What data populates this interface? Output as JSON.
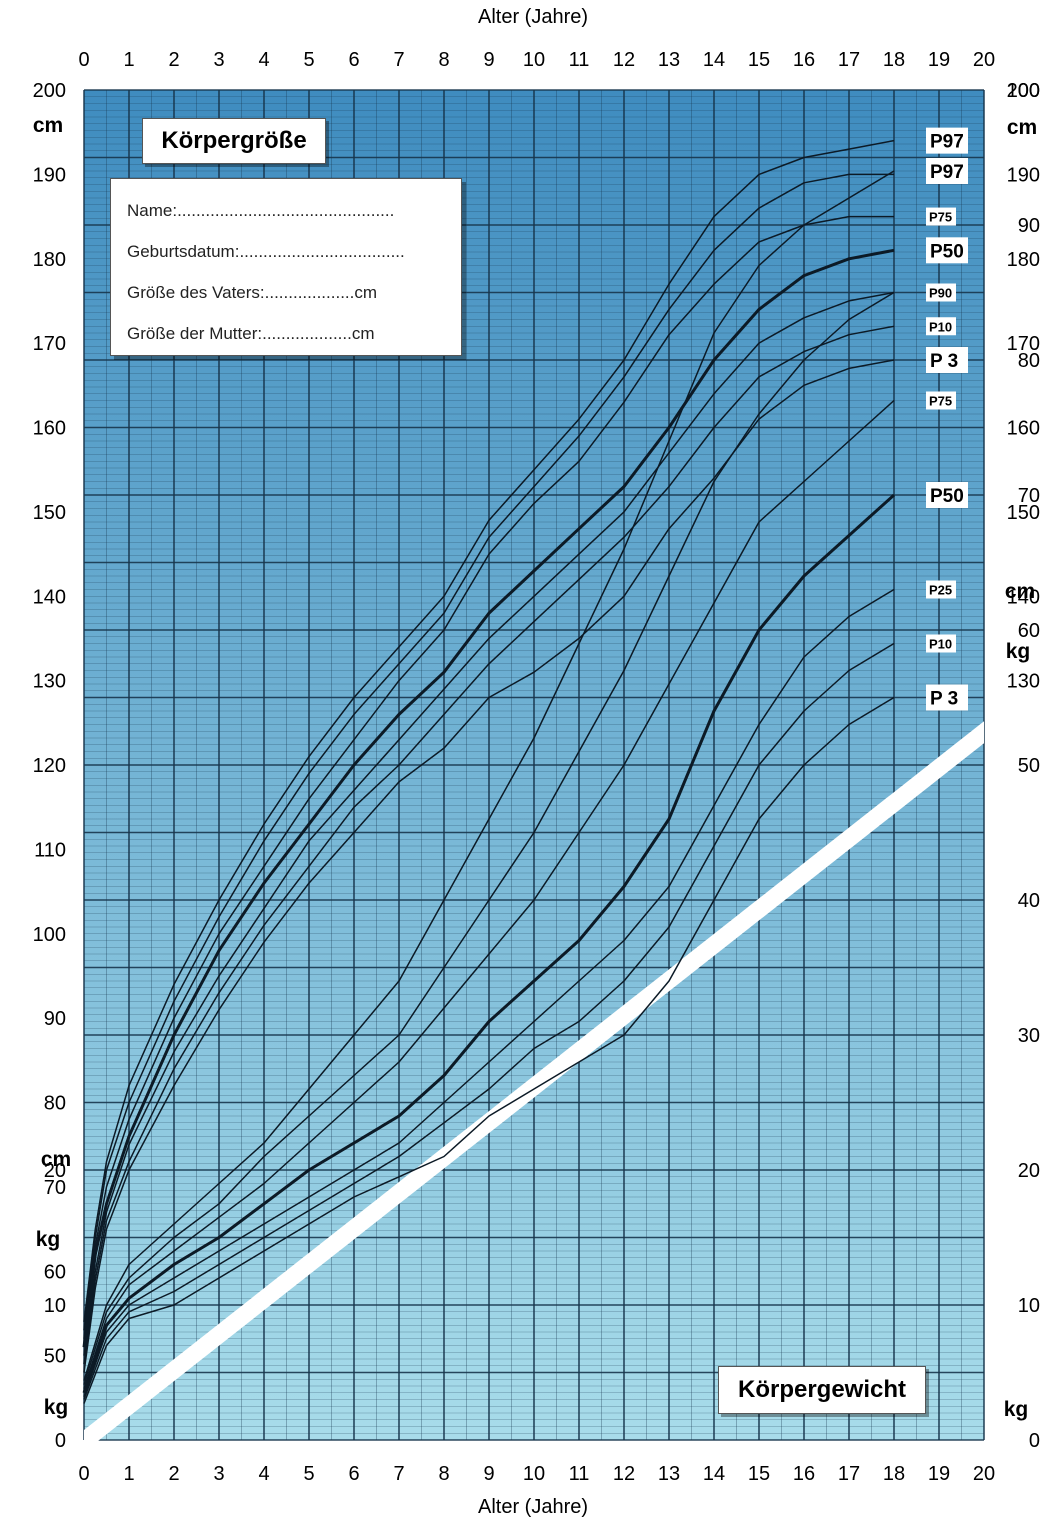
{
  "axis_title_top": "Alter (Jahre)",
  "axis_title_bottom": "Alter (Jahre)",
  "height_title": "Körpergröße",
  "weight_title": "Körpergewicht",
  "form": {
    "name": "Name:..............................................",
    "birth": "Geburtsdatum:...................................",
    "father": "Größe des Vaters:...................cm",
    "mother": "Größe der  Mutter:...................cm"
  },
  "units": {
    "cm": "cm",
    "kg": "kg"
  },
  "colors": {
    "background_top": "#3f8cbf",
    "background_bottom": "#a8dcea",
    "grid": "#17354d",
    "curve": "#0c1a26"
  },
  "chart_data": [
    {
      "type": "line",
      "title": "Körpergröße",
      "xlabel": "Alter (Jahre)",
      "ylabel": "cm",
      "xlim": [
        0,
        20
      ],
      "ylim": [
        40,
        200
      ],
      "x_ticks": [
        0,
        1,
        2,
        3,
        4,
        5,
        6,
        7,
        8,
        9,
        10,
        11,
        12,
        13,
        14,
        15,
        16,
        17,
        18,
        19,
        20
      ],
      "y_ticks": [
        50,
        60,
        70,
        80,
        90,
        100,
        110,
        120,
        130,
        140,
        150,
        160,
        170,
        180,
        190,
        200
      ],
      "grid": true,
      "legend_position": "right",
      "series": [
        {
          "name": "P97",
          "x": [
            0,
            0.25,
            0.5,
            1,
            2,
            3,
            4,
            5,
            6,
            7,
            8,
            9,
            10,
            11,
            12,
            13,
            14,
            15,
            16,
            17,
            18
          ],
          "y": [
            54,
            65,
            73,
            82,
            94,
            104,
            113,
            121,
            128,
            134,
            140,
            149,
            155,
            161,
            168,
            177,
            185,
            190,
            192,
            193,
            194
          ]
        },
        {
          "name": "P90",
          "x": [
            0,
            0.25,
            0.5,
            1,
            2,
            3,
            4,
            5,
            6,
            7,
            8,
            9,
            10,
            11,
            12,
            13,
            14,
            15,
            16,
            17,
            18
          ],
          "y": [
            53,
            64,
            72,
            80,
            92,
            102,
            111,
            119,
            126,
            132,
            138,
            147,
            153,
            159,
            166,
            174,
            181,
            186,
            189,
            190,
            190
          ]
        },
        {
          "name": "P75",
          "x": [
            0,
            0.25,
            0.5,
            1,
            2,
            3,
            4,
            5,
            6,
            7,
            8,
            9,
            10,
            11,
            12,
            13,
            14,
            15,
            16,
            17,
            18
          ],
          "y": [
            52,
            63,
            70,
            78,
            90,
            100,
            108,
            116,
            123,
            130,
            136,
            145,
            151,
            156,
            163,
            171,
            177,
            182,
            184,
            185,
            185
          ]
        },
        {
          "name": "P50",
          "x": [
            0,
            0.25,
            0.5,
            1,
            2,
            3,
            4,
            5,
            6,
            7,
            8,
            9,
            10,
            11,
            12,
            13,
            14,
            15,
            16,
            17,
            18
          ],
          "y": [
            51,
            62,
            68,
            76,
            88,
            98,
            106,
            113,
            120,
            126,
            131,
            138,
            143,
            148,
            153,
            160,
            168,
            174,
            178,
            180,
            181
          ]
        },
        {
          "name": "P25",
          "x": [
            0,
            0.25,
            0.5,
            1,
            2,
            3,
            4,
            5,
            6,
            7,
            8,
            9,
            10,
            11,
            12,
            13,
            14,
            15,
            16,
            17,
            18
          ],
          "y": [
            50,
            60,
            67,
            75,
            86,
            95,
            103,
            111,
            117,
            123,
            129,
            135,
            140,
            145,
            150,
            157,
            164,
            170,
            173,
            175,
            176
          ]
        },
        {
          "name": "P10",
          "x": [
            0,
            0.25,
            0.5,
            1,
            2,
            3,
            4,
            5,
            6,
            7,
            8,
            9,
            10,
            11,
            12,
            13,
            14,
            15,
            16,
            17,
            18
          ],
          "y": [
            49,
            59,
            66,
            73,
            84,
            93,
            101,
            108,
            115,
            120,
            126,
            132,
            137,
            142,
            147,
            153,
            160,
            166,
            169,
            171,
            172
          ]
        },
        {
          "name": "P 3",
          "x": [
            0,
            0.25,
            0.5,
            1,
            2,
            3,
            4,
            5,
            6,
            7,
            8,
            9,
            10,
            11,
            12,
            13,
            14,
            15,
            16,
            17,
            18
          ],
          "y": [
            48,
            58,
            65,
            72,
            82,
            91,
            99,
            106,
            112,
            118,
            122,
            128,
            131,
            135,
            140,
            148,
            154,
            161,
            165,
            167,
            168
          ]
        }
      ]
    },
    {
      "type": "line",
      "title": "Körpergewicht",
      "xlabel": "Alter (Jahre)",
      "ylabel": "kg",
      "xlim": [
        0,
        20
      ],
      "ylim": [
        0,
        100
      ],
      "x_ticks": [
        0,
        1,
        2,
        3,
        4,
        5,
        6,
        7,
        8,
        9,
        10,
        11,
        12,
        13,
        14,
        15,
        16,
        17,
        18,
        19,
        20
      ],
      "y_ticks": [
        0,
        10,
        20,
        30,
        40,
        50,
        60,
        70,
        80,
        90,
        100
      ],
      "grid": true,
      "legend_position": "right",
      "series": [
        {
          "name": "P97",
          "x": [
            0,
            0.5,
            1,
            2,
            3,
            4,
            5,
            6,
            7,
            8,
            9,
            10,
            11,
            12,
            13,
            14,
            15,
            16,
            17,
            18
          ],
          "y": [
            4.4,
            10,
            13,
            16,
            19,
            22,
            26,
            30,
            34,
            40,
            46,
            52,
            59,
            66,
            74,
            82,
            87,
            90,
            92,
            94
          ]
        },
        {
          "name": "P90",
          "x": [
            0,
            0.5,
            1,
            2,
            3,
            4,
            5,
            6,
            7,
            8,
            9,
            10,
            11,
            12,
            13,
            14,
            15,
            16,
            17,
            18
          ],
          "y": [
            4.1,
            9.5,
            12,
            15,
            17.5,
            21,
            24,
            27,
            30,
            35,
            40,
            45,
            51,
            57,
            64,
            71,
            76,
            80,
            83,
            85
          ]
        },
        {
          "name": "P75",
          "x": [
            0,
            0.5,
            1,
            2,
            3,
            4,
            5,
            6,
            7,
            8,
            9,
            10,
            11,
            12,
            13,
            14,
            15,
            16,
            17,
            18
          ],
          "y": [
            3.8,
            9,
            11.5,
            14,
            16.5,
            19,
            22,
            25,
            28,
            32,
            36,
            40,
            45,
            50,
            56,
            62,
            68,
            71,
            74,
            77
          ]
        },
        {
          "name": "P50",
          "x": [
            0,
            0.5,
            1,
            2,
            3,
            4,
            5,
            6,
            7,
            8,
            9,
            10,
            11,
            12,
            13,
            14,
            15,
            16,
            17,
            18
          ],
          "y": [
            3.5,
            8.5,
            10.5,
            13,
            15,
            17.5,
            20,
            22,
            24,
            27,
            31,
            34,
            37,
            41,
            46,
            54,
            60,
            64,
            67,
            70
          ]
        },
        {
          "name": "P25",
          "x": [
            0,
            0.5,
            1,
            2,
            3,
            4,
            5,
            6,
            7,
            8,
            9,
            10,
            11,
            12,
            13,
            14,
            15,
            16,
            17,
            18
          ],
          "y": [
            3.2,
            8,
            10,
            12,
            14,
            16,
            18,
            20,
            22,
            25,
            28,
            31,
            34,
            37,
            41,
            47,
            53,
            58,
            61,
            63
          ]
        },
        {
          "name": "P10",
          "x": [
            0,
            0.5,
            1,
            2,
            3,
            4,
            5,
            6,
            7,
            8,
            9,
            10,
            11,
            12,
            13,
            14,
            15,
            16,
            17,
            18
          ],
          "y": [
            3,
            7.5,
            9.5,
            11,
            13,
            15,
            17,
            19,
            21,
            23.5,
            26,
            29,
            31,
            34,
            38,
            44,
            50,
            54,
            57,
            59
          ]
        },
        {
          "name": "P 3",
          "x": [
            0,
            0.5,
            1,
            2,
            3,
            4,
            5,
            6,
            7,
            8,
            9,
            10,
            11,
            12,
            13,
            14,
            15,
            16,
            17,
            18
          ],
          "y": [
            2.7,
            7,
            9,
            10,
            12,
            14,
            16,
            18,
            19.5,
            21,
            24,
            26,
            28,
            30,
            34,
            40,
            46,
            50,
            53,
            55
          ]
        }
      ]
    }
  ]
}
